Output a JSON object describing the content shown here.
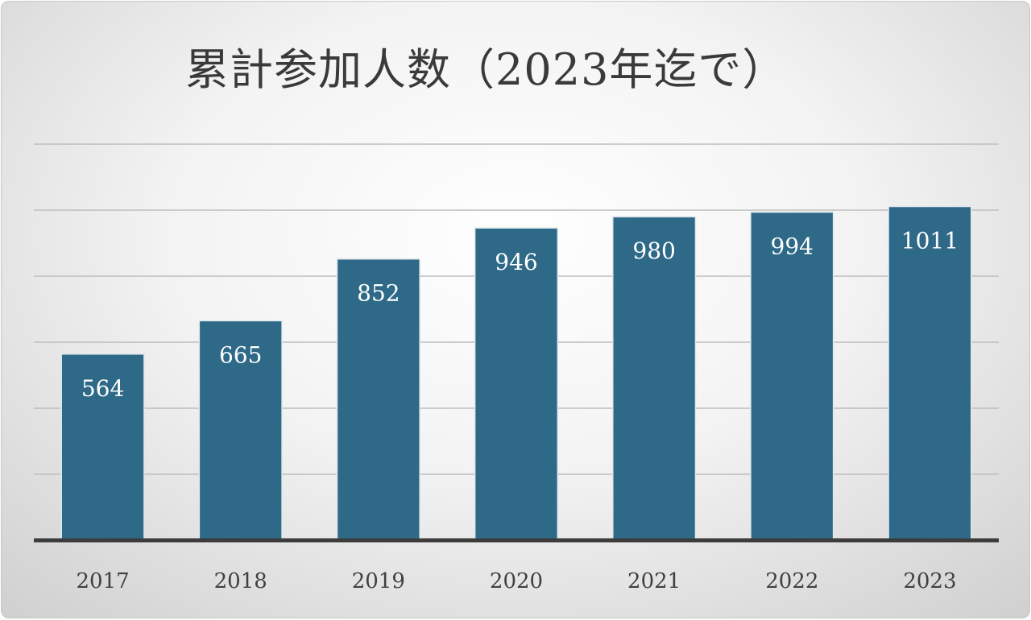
{
  "chart_data": {
    "type": "bar",
    "title": "累計参加人数（2023年迄で）",
    "xlabel": "",
    "ylabel": "",
    "categories": [
      "2017",
      "2018",
      "2019",
      "2020",
      "2021",
      "2022",
      "2023"
    ],
    "values": [
      564,
      665,
      852,
      946,
      980,
      994,
      1011
    ],
    "ylim": [
      0,
      1200
    ],
    "ytick_step": 200,
    "ytick_labels_visible": false,
    "grid": true,
    "legend": "none",
    "data_labels": "inside-top",
    "bar_color": "#2e6a88",
    "bar_edge_color": "#dfe7ec",
    "axis_color": "#3c3c3c",
    "grid_color": "#bdbdbd"
  }
}
